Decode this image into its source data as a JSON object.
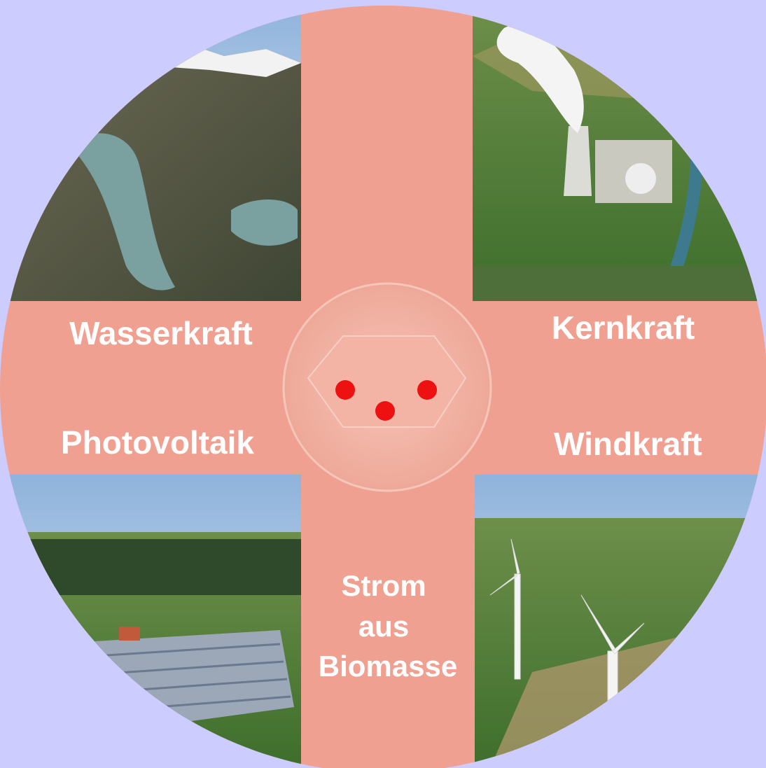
{
  "quadrants": [
    {
      "label": "Wasserkraft"
    },
    {
      "label": "Kernkraft"
    },
    {
      "label": "Photovoltaik"
    },
    {
      "label": "Windkraft"
    }
  ],
  "center": {
    "lines": [
      "Strom",
      "aus",
      "Biomasse"
    ]
  }
}
